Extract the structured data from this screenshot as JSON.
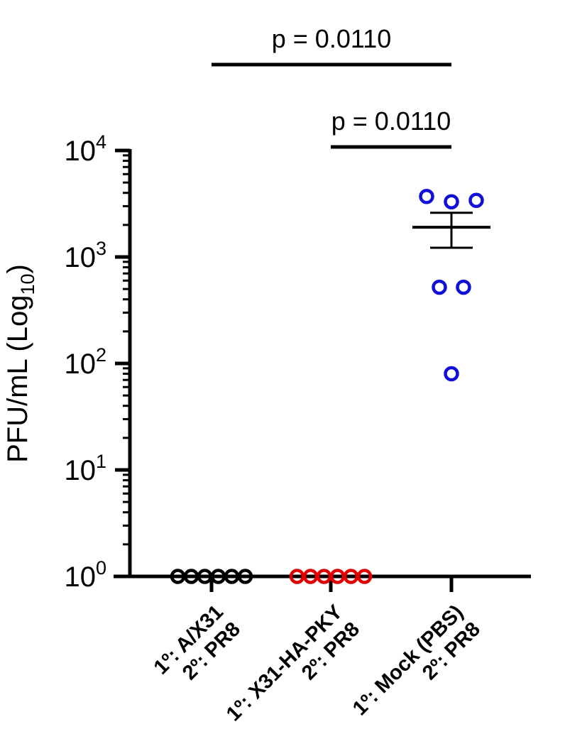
{
  "chart_data": {
    "type": "scatter",
    "ylabel": "PFU/mL (Log",
    "ylabel_sub": "10",
    "ylabel_close": ")",
    "yscale": "log",
    "ylim": [
      1,
      10000
    ],
    "yticks": [
      {
        "value": 1,
        "base": "10",
        "exp": "0"
      },
      {
        "value": 10,
        "base": "10",
        "exp": "1"
      },
      {
        "value": 100,
        "base": "10",
        "exp": "2"
      },
      {
        "value": 1000,
        "base": "10",
        "exp": "3"
      },
      {
        "value": 10000,
        "base": "10",
        "exp": "4"
      }
    ],
    "groups": [
      {
        "line1": "1º: A/X31",
        "line2": "2º: PR8",
        "color": "#000000",
        "values": [
          1,
          1,
          1,
          1,
          1,
          1
        ]
      },
      {
        "line1": "1º: X31-HA-PKY",
        "line2": "2º: PR8",
        "color": "#e00000",
        "values": [
          1,
          1,
          1,
          1,
          1,
          1
        ]
      },
      {
        "line1": "1º: Mock (PBS)",
        "line2": "2º: PR8",
        "color": "#1010d8",
        "values": [
          3700,
          3300,
          3400,
          520,
          520,
          80
        ],
        "mean": 1900,
        "sem_upper": 2600,
        "sem_lower": 1220
      }
    ],
    "annotations": [
      {
        "text": "p = 0.0110",
        "from_group": 0,
        "to_group": 2
      },
      {
        "text": "p = 0.0110",
        "from_group": 1,
        "to_group": 2
      }
    ]
  }
}
